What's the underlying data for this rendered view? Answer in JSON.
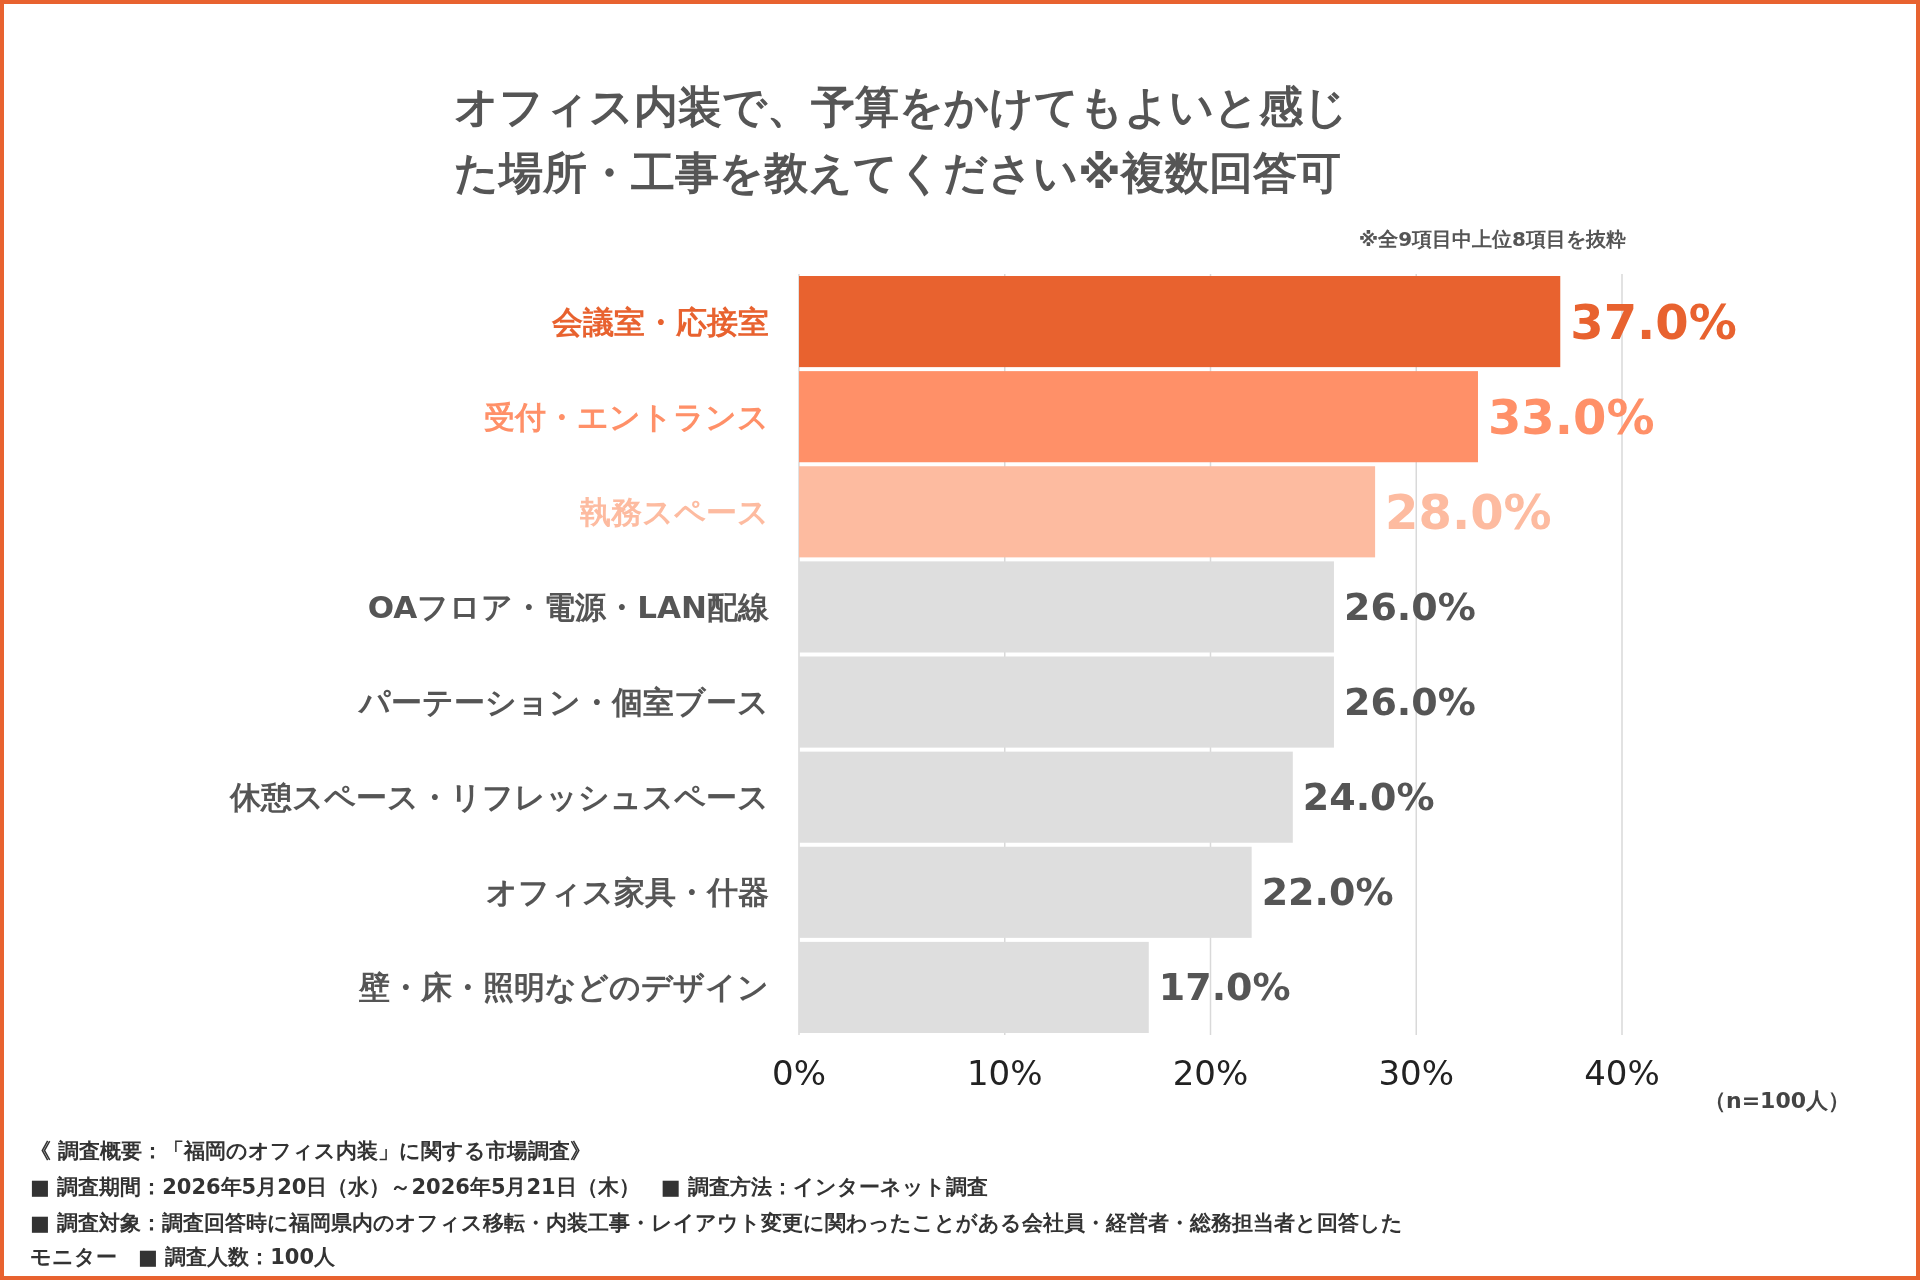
{
  "chart_data": {
    "type": "bar",
    "orientation": "horizontal",
    "title": "オフィス内装で、予算をかけてもよいと感じた場所・工事を教えてください※複数回答可",
    "subtitle": "※全9項目中上位8項目を抜粋",
    "categories": [
      "会議室・応接室",
      "受付・エントランス",
      "執務スペース",
      "OAフロア・電源・LAN配線",
      "パーテーション・個室ブース",
      "休憩スペース・リフレッシュスペース",
      "オフィス家具・什器",
      "壁・床・照明などのデザイン"
    ],
    "values": [
      37,
      33,
      28,
      26,
      26,
      24,
      22,
      17
    ],
    "value_labels": [
      "37.0%",
      "33.0%",
      "28.0%",
      "26.0%",
      "26.0%",
      "24.0%",
      "22.0%",
      "17.0%"
    ],
    "colors": [
      "#e8622f",
      "#ff9068",
      "#fdbba0",
      "#dedede",
      "#dedede",
      "#dedede",
      "#dedede",
      "#dedede"
    ],
    "xlim": [
      0,
      40
    ],
    "xticks": [
      {
        "value": 0,
        "label": "0%"
      },
      {
        "value": 10,
        "label": "10%"
      },
      {
        "value": 20,
        "label": "20%"
      },
      {
        "value": 30,
        "label": "30%"
      },
      {
        "value": 40,
        "label": "40%"
      }
    ],
    "grid": "x",
    "annotations": [
      "（n=100人）",
      "《 調査概要：「福岡のオフィス内装」に関する市場調査》",
      "■ 調査期間：2026年5月20日（水）～2026年5月21日（木）　■ 調査方法：インターネット調査",
      "■ 調査対象：調査回答時に福岡県内のオフィス移転・内装工事・レイアウト変更に関わったことがある会社員・経営者・総務担当者と回答したモニター　■ 調査人数：100人"
    ]
  }
}
